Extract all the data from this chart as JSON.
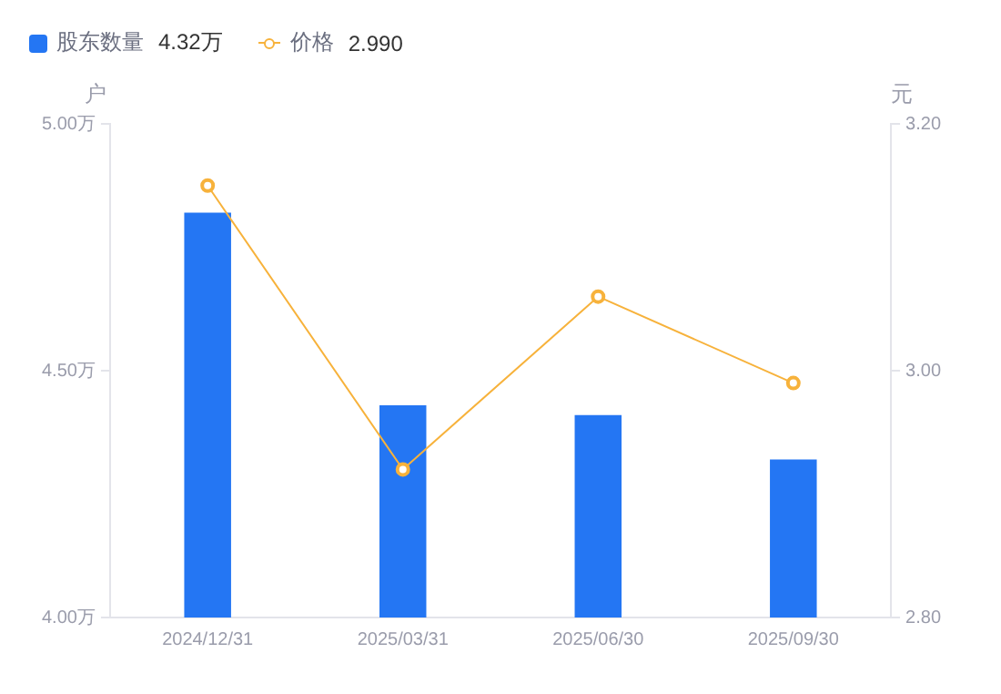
{
  "chart_data": {
    "type": "bar",
    "categories": [
      "2024/12/31",
      "2025/03/31",
      "2025/06/30",
      "2025/09/30"
    ],
    "series": [
      {
        "name": "股东数量",
        "color": "#2476f3",
        "values": [
          4.82,
          4.43,
          4.41,
          4.32
        ]
      },
      {
        "name": "价格",
        "type": "line",
        "axis": "y2",
        "color": "#f7b23b",
        "marker": "circle",
        "values": [
          3.15,
          2.92,
          3.06,
          2.99
        ]
      }
    ],
    "ylabel": "户",
    "y2label": "元",
    "ylim": [
      4.0,
      5.0
    ],
    "yticks": [
      {
        "value": 4.0,
        "label": "4.00万"
      },
      {
        "value": 4.5,
        "label": "4.50万"
      },
      {
        "value": 5.0,
        "label": "5.00万"
      }
    ],
    "y2lim": [
      2.8,
      3.2
    ],
    "y2ticks": [
      {
        "value": 2.8,
        "label": "2.80"
      },
      {
        "value": 3.0,
        "label": "3.00"
      },
      {
        "value": 3.2,
        "label": "3.20"
      }
    ],
    "annotations": [
      "4.32万",
      "2.990"
    ],
    "grid": false,
    "legend": "top left"
  }
}
